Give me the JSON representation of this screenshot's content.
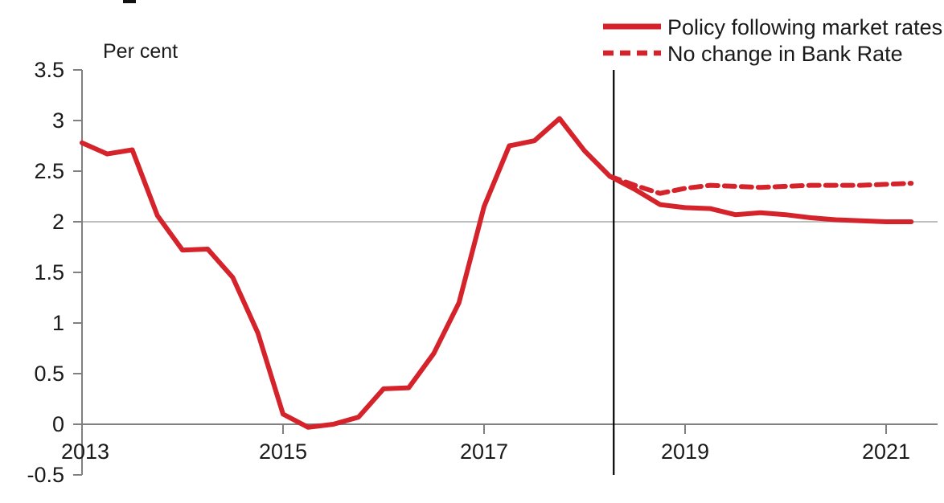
{
  "chart_data": {
    "type": "line",
    "title": "",
    "y_axis_label": "Per cent",
    "xlabel": "",
    "ylabel": "Per cent",
    "xlim": [
      2013,
      2021.52
    ],
    "ylim": [
      -0.5,
      3.5
    ],
    "grid": "single horizontal gridline at y=2 (inflation target)",
    "x_ticks": {
      "values": [
        2013,
        2015,
        2017,
        2019,
        2021
      ],
      "labels": [
        "2013",
        "2015",
        "2017",
        "2019",
        "2021"
      ]
    },
    "y_ticks": {
      "values": [
        3.5,
        3,
        2.5,
        2,
        1.5,
        1,
        0.5,
        0,
        -0.5
      ],
      "labels": [
        "3.5",
        "3",
        "2.5",
        "2",
        "1.5",
        "1",
        "0.5",
        "0",
        "-0.5"
      ]
    },
    "target_gridline_y": 2,
    "forecast_divider_x": 2018.29,
    "legend": {
      "position": "top-right",
      "entries": [
        "Policy following market rates",
        "No change in Bank Rate"
      ]
    },
    "series": [
      {
        "name": "Policy following market rates",
        "style": "solid",
        "color": "#d5232b",
        "x": [
          2013.0,
          2013.25,
          2013.5,
          2013.75,
          2014.0,
          2014.25,
          2014.5,
          2014.75,
          2015.0,
          2015.25,
          2015.5,
          2015.75,
          2016.0,
          2016.25,
          2016.5,
          2016.75,
          2017.0,
          2017.25,
          2017.5,
          2017.75,
          2018.0,
          2018.25,
          2018.5,
          2018.75,
          2019.0,
          2019.25,
          2019.5,
          2019.75,
          2020.0,
          2020.25,
          2020.5,
          2020.75,
          2021.0,
          2021.25
        ],
        "values": [
          2.78,
          2.67,
          2.71,
          2.06,
          1.72,
          1.73,
          1.45,
          0.9,
          0.1,
          -0.03,
          0.0,
          0.07,
          0.35,
          0.36,
          0.7,
          1.2,
          2.15,
          2.75,
          2.8,
          3.02,
          2.7,
          2.45,
          2.32,
          2.17,
          2.14,
          2.13,
          2.07,
          2.09,
          2.07,
          2.04,
          2.02,
          2.01,
          2.0,
          2.0
        ]
      },
      {
        "name": "No change in Bank Rate",
        "style": "dashed",
        "color": "#d5232b",
        "x": [
          2018.25,
          2018.5,
          2018.75,
          2019.0,
          2019.25,
          2019.5,
          2019.75,
          2020.0,
          2020.25,
          2020.5,
          2020.75,
          2021.0,
          2021.25
        ],
        "values": [
          2.45,
          2.36,
          2.28,
          2.33,
          2.36,
          2.35,
          2.34,
          2.35,
          2.36,
          2.36,
          2.36,
          2.37,
          2.38
        ]
      }
    ]
  },
  "colors": {
    "line_red": "#d5232b",
    "axis_gray": "#808080",
    "gridline_gray": "#a8a8a8",
    "divider_black": "#000000",
    "text_black": "#1a1a1a"
  }
}
